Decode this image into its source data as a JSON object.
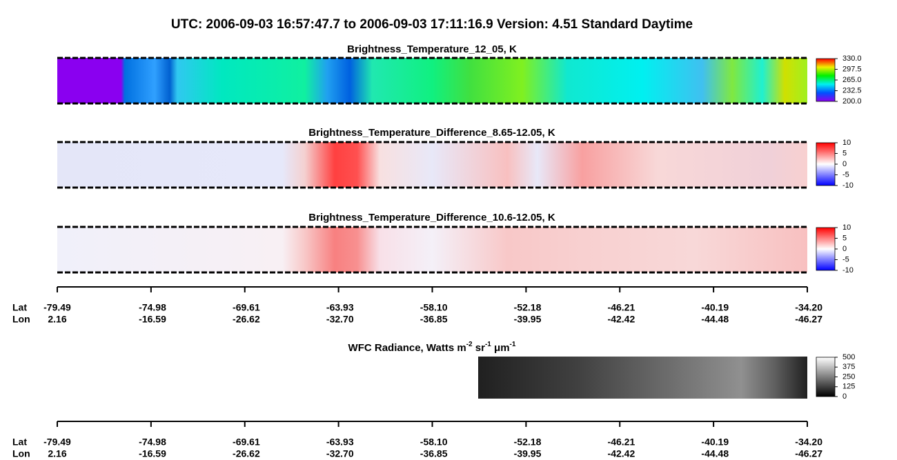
{
  "title": "UTC:  2006-09-03   16:57:47.7  to  2006-09-03   17:11:16.9    Version: 4.51  Standard Daytime",
  "panels": [
    {
      "title": "Brightness_Temperature_12_05, K",
      "colorbar": [
        {
          "value": 200,
          "label": "200.0"
        },
        {
          "value": 232.5,
          "label": "232.5"
        },
        {
          "value": 265,
          "label": "265.0"
        },
        {
          "value": 297.5,
          "label": "297.5"
        },
        {
          "value": 330,
          "label": "330.0"
        }
      ]
    },
    {
      "title": "Brightness_Temperature_Difference_8.65-12.05, K",
      "colorbar": [
        -10,
        -5,
        0,
        5,
        10
      ]
    },
    {
      "title": "Brightness_Temperature_Difference_10.6-12.05, K",
      "colorbar": [
        -10,
        -5,
        0,
        5,
        10
      ]
    },
    {
      "title_parts": [
        {
          "text": "WFC Radiance, Watts m"
        },
        {
          "sup": "-2"
        },
        {
          "text": " sr"
        },
        {
          "sup": "-1"
        },
        {
          "text": " μm"
        },
        {
          "sup": "-1"
        }
      ],
      "colorbar": [
        0,
        125,
        250,
        375,
        500
      ]
    }
  ],
  "axes": [
    {
      "lat_label": "Lat",
      "lon_label": "Lon",
      "lat": [
        "-79.49",
        "-74.98",
        "-69.61",
        "-63.93",
        "-58.10",
        "-52.18",
        "-46.21",
        "-40.19",
        "-34.20"
      ],
      "lon": [
        "2.16",
        "-16.59",
        "-26.62",
        "-32.70",
        "-36.85",
        "-39.95",
        "-42.42",
        "-44.48",
        "-46.27"
      ]
    },
    {
      "lat_label": "Lat",
      "lon_label": "Lon",
      "lat": [
        "-79.49",
        "-74.98",
        "-69.61",
        "-63.93",
        "-58.10",
        "-52.18",
        "-46.21",
        "-40.19",
        "-34.20"
      ],
      "lon": [
        "2.16",
        "-16.59",
        "-26.62",
        "-32.70",
        "-36.85",
        "-39.95",
        "-42.42",
        "-44.48",
        "-46.27"
      ]
    }
  ]
}
